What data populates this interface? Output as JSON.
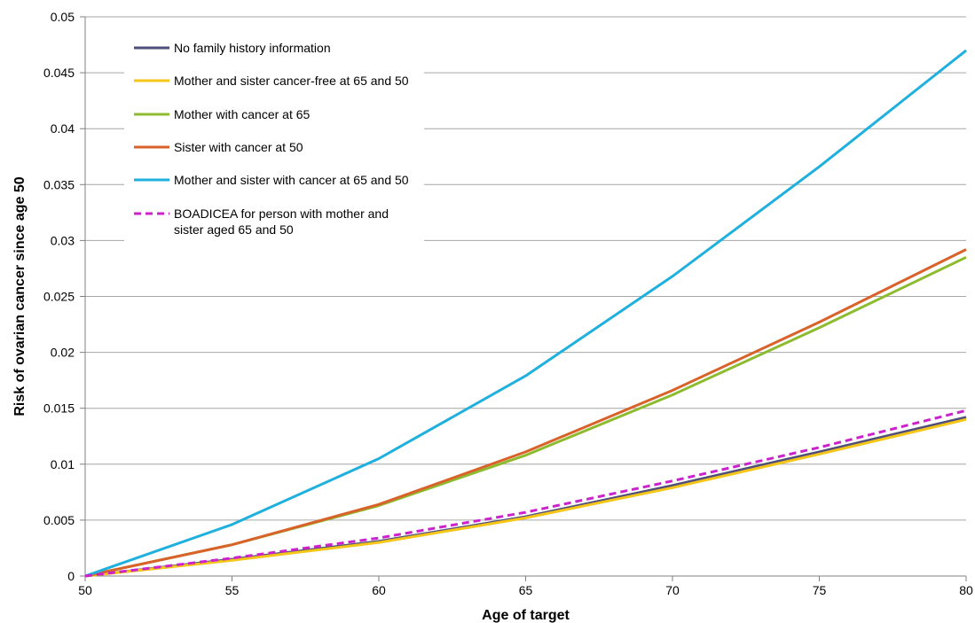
{
  "chart_data": {
    "type": "line",
    "xlabel": "Age of target",
    "ylabel": "Risk of ovarian cancer since age 50",
    "xlim": [
      50,
      80
    ],
    "ylim": [
      0,
      0.05
    ],
    "x_ticks": [
      "50",
      "55",
      "60",
      "65",
      "70",
      "75",
      "80"
    ],
    "y_ticks": [
      "0",
      "0.005",
      "0.01",
      "0.015",
      "0.02",
      "0.025",
      "0.03",
      "0.035",
      "0.04",
      "0.045",
      "0.05"
    ],
    "grid": "horizontal",
    "legend_position": "top-left",
    "x": [
      50,
      55,
      60,
      65,
      70,
      75,
      80
    ],
    "series": [
      {
        "name": "No family history information",
        "color": "#4f4f7a",
        "dash": false,
        "line_lines": [
          "No family history information"
        ],
        "values": [
          0,
          0.0015,
          0.0031,
          0.0053,
          0.0081,
          0.0111,
          0.0142
        ]
      },
      {
        "name": "Mother and sister cancer-free at 65 and 50",
        "color": "#f5c518",
        "dash": false,
        "line_lines": [
          "Mother and sister cancer-free at 65 and 50"
        ],
        "values": [
          0,
          0.0014,
          0.003,
          0.0052,
          0.0079,
          0.0109,
          0.014
        ]
      },
      {
        "name": "Mother with cancer at 65",
        "color": "#8dbb2e",
        "dash": false,
        "line_lines": [
          "Mother with cancer at 65"
        ],
        "values": [
          0,
          0.0028,
          0.0063,
          0.0108,
          0.0162,
          0.0222,
          0.0285
        ]
      },
      {
        "name": "Sister with cancer at 50",
        "color": "#d9622b",
        "dash": false,
        "line_lines": [
          "Sister with cancer at 50"
        ],
        "values": [
          0,
          0.0028,
          0.0064,
          0.0111,
          0.0166,
          0.0227,
          0.0292
        ]
      },
      {
        "name": "Mother and sister with cancer at 65 and 50",
        "color": "#1fb0de",
        "dash": false,
        "line_lines": [
          "Mother and sister with cancer at 65 and 50"
        ],
        "values": [
          0,
          0.0046,
          0.0105,
          0.0179,
          0.0268,
          0.0366,
          0.047
        ]
      },
      {
        "name": "BOADICEA for person with mother and sister aged 65 and 50",
        "color": "#cc22cc",
        "dash": true,
        "line_lines": [
          "BOADICEA for person with mother and",
          "sister aged 65 and 50"
        ],
        "values": [
          0,
          0.0016,
          0.0034,
          0.0057,
          0.0085,
          0.0115,
          0.0148
        ]
      }
    ]
  }
}
